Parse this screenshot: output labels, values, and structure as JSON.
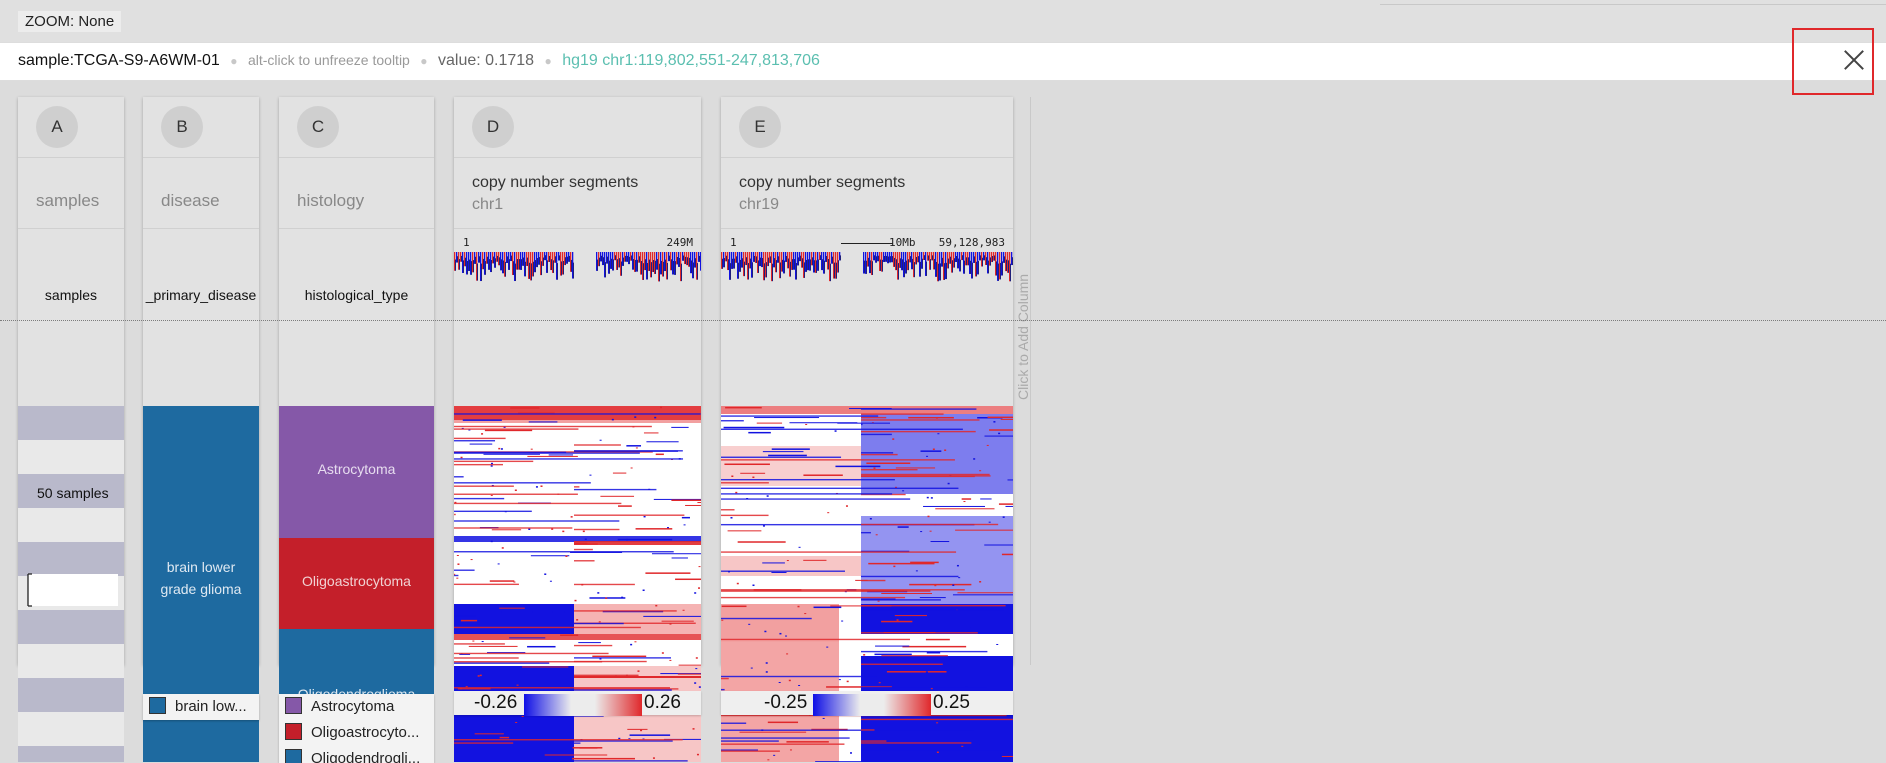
{
  "zoom": {
    "label": "ZOOM: None"
  },
  "tooltip": {
    "sample": "sample:TCGA-S9-A6WM-01",
    "hint": "alt-click to unfreeze tooltip",
    "value": "value: 0.1718",
    "position": "hg19 chr1:119,802,551-247,813,706"
  },
  "columns": {
    "a": {
      "id": "A",
      "title": "samples",
      "subtitle": "samples",
      "count_label": "50 samples"
    },
    "b": {
      "id": "B",
      "title": "disease",
      "subtitle": "_primary_disease",
      "category": "brain lower grade glioma",
      "color": "#1e6aa0"
    },
    "c": {
      "id": "C",
      "title": "histology",
      "subtitle": "histological_type",
      "categories": [
        {
          "label": "Astrocytoma",
          "color": "#8558a8"
        },
        {
          "label": "Oligoastrocytoma",
          "color": "#c41f2a"
        },
        {
          "label": "Oligodendroglioma",
          "color": "#1e6aa0"
        }
      ]
    },
    "d": {
      "id": "D",
      "title": "copy number segments",
      "chrom": "chr1",
      "start": "1",
      "end": "249M"
    },
    "e": {
      "id": "E",
      "title": "copy number segments",
      "chrom": "chr19",
      "start": "1",
      "scale": "10Mb",
      "end": "59,128,983"
    }
  },
  "legends": {
    "b": [
      "brain low..."
    ],
    "c": [
      "Astrocytoma",
      "Oligoastrocyto...",
      "Oligodendrogli..."
    ],
    "d": {
      "min": "-0.26",
      "max": "0.26"
    },
    "e": {
      "min": "-0.25",
      "max": "0.25"
    }
  },
  "add_column": "Click to Add Column",
  "colors": {
    "gain": "#e0282b",
    "loss": "#1212e0",
    "accent": "#5bbfb0"
  }
}
